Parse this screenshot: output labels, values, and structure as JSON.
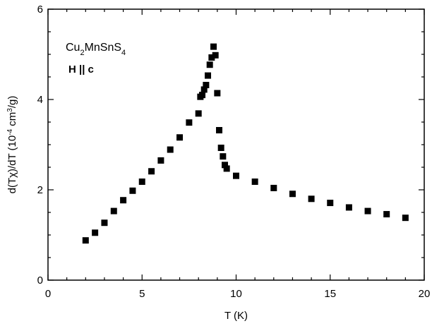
{
  "chart_data": {
    "type": "scatter",
    "xlabel": "T (K)",
    "ylabel": {
      "parts": [
        {
          "text": "d(T",
          "style": "normal"
        },
        {
          "text": "χ",
          "style": "normal"
        },
        {
          "text": ")/dT  (10",
          "style": "normal"
        },
        {
          "text": "-4",
          "style": "super"
        },
        {
          "text": " cm",
          "style": "normal"
        },
        {
          "text": "3",
          "style": "super"
        },
        {
          "text": "/g)",
          "style": "normal"
        }
      ]
    },
    "xlim": [
      0,
      20
    ],
    "ylim": [
      0,
      6
    ],
    "xticks": [
      0,
      5,
      10,
      15,
      20
    ],
    "yticks": [
      0,
      2,
      4,
      6
    ],
    "xtick_labels": [
      "0",
      "5",
      "10",
      "15",
      "20"
    ],
    "ytick_labels": [
      "0",
      "2",
      "4",
      "6"
    ],
    "grid": false,
    "marker": "square",
    "marker_color": "#000000",
    "annotations": {
      "compound": {
        "parts": [
          {
            "text": "Cu",
            "style": "normal"
          },
          {
            "text": "2",
            "style": "sub"
          },
          {
            "text": "MnSnS",
            "style": "normal"
          },
          {
            "text": "4",
            "style": "sub"
          }
        ]
      },
      "field": "H || c"
    },
    "points": [
      {
        "x": 2.0,
        "y": 0.88
      },
      {
        "x": 2.5,
        "y": 1.05
      },
      {
        "x": 3.0,
        "y": 1.27
      },
      {
        "x": 3.5,
        "y": 1.53
      },
      {
        "x": 4.0,
        "y": 1.77
      },
      {
        "x": 4.5,
        "y": 1.98
      },
      {
        "x": 5.0,
        "y": 2.18
      },
      {
        "x": 5.5,
        "y": 2.41
      },
      {
        "x": 6.0,
        "y": 2.65
      },
      {
        "x": 6.5,
        "y": 2.89
      },
      {
        "x": 7.0,
        "y": 3.16
      },
      {
        "x": 7.5,
        "y": 3.49
      },
      {
        "x": 8.0,
        "y": 3.69
      },
      {
        "x": 8.1,
        "y": 4.06
      },
      {
        "x": 8.2,
        "y": 4.1
      },
      {
        "x": 8.3,
        "y": 4.22
      },
      {
        "x": 8.4,
        "y": 4.32
      },
      {
        "x": 8.5,
        "y": 4.53
      },
      {
        "x": 8.6,
        "y": 4.77
      },
      {
        "x": 8.7,
        "y": 4.93
      },
      {
        "x": 8.8,
        "y": 5.17
      },
      {
        "x": 8.9,
        "y": 4.98
      },
      {
        "x": 9.0,
        "y": 4.14
      },
      {
        "x": 9.1,
        "y": 3.32
      },
      {
        "x": 9.2,
        "y": 2.93
      },
      {
        "x": 9.3,
        "y": 2.74
      },
      {
        "x": 9.4,
        "y": 2.55
      },
      {
        "x": 9.5,
        "y": 2.47
      },
      {
        "x": 10.0,
        "y": 2.31
      },
      {
        "x": 11.0,
        "y": 2.18
      },
      {
        "x": 12.0,
        "y": 2.04
      },
      {
        "x": 13.0,
        "y": 1.91
      },
      {
        "x": 14.0,
        "y": 1.8
      },
      {
        "x": 15.0,
        "y": 1.71
      },
      {
        "x": 16.0,
        "y": 1.61
      },
      {
        "x": 17.0,
        "y": 1.53
      },
      {
        "x": 18.0,
        "y": 1.46
      },
      {
        "x": 19.0,
        "y": 1.38
      }
    ]
  }
}
